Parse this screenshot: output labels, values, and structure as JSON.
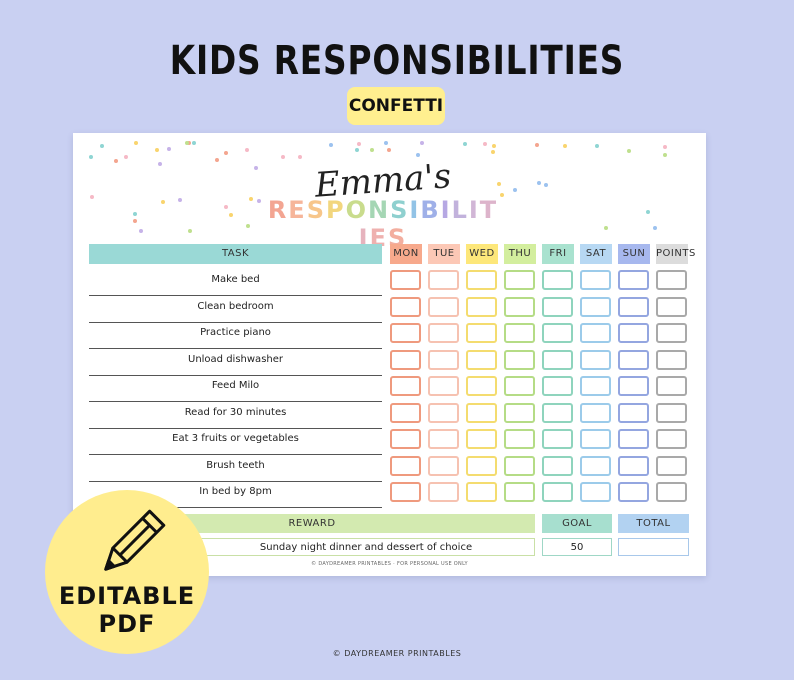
{
  "product": {
    "title": "KIDS RESPONSIBILITIES",
    "variant": "CONFETTI"
  },
  "chart": {
    "child_name": "Emma's",
    "heading": "RESPONSIBILITIES",
    "heading_colors": [
      "#f3a592",
      "#f6b59a",
      "#f7c68a",
      "#f2d67e",
      "#c9dc8d",
      "#a5d6b4",
      "#8fd0cf",
      "#92c3e6",
      "#9fb0e8",
      "#b6a8e3",
      "#c2b2dc",
      "#d1b6d6",
      "#ddb4cb",
      "#e6b3bd",
      "#efb1af",
      "#f3ae9f"
    ],
    "task_header": "TASK",
    "tasks": [
      "Make bed",
      "Clean bedroom",
      "Practice piano",
      "Unload dishwasher",
      "Feed Milo",
      "Read for 30 minutes",
      "Eat 3 fruits or vegetables",
      "Brush teeth",
      "In bed by 8pm"
    ],
    "days": [
      {
        "label": "MON",
        "header_color": "#f7a98c",
        "cell_color": "#ef9a7e"
      },
      {
        "label": "TUE",
        "header_color": "#fcc8b6",
        "cell_color": "#f6c2b1"
      },
      {
        "label": "WED",
        "header_color": "#fde77a",
        "cell_color": "#f4dc6f"
      },
      {
        "label": "THU",
        "header_color": "#d3ee9e",
        "cell_color": "#b5dc86"
      },
      {
        "label": "FRI",
        "header_color": "#a9e2cf",
        "cell_color": "#8fd4bd"
      },
      {
        "label": "SAT",
        "header_color": "#b7d8f3",
        "cell_color": "#9ccbea"
      },
      {
        "label": "SUN",
        "header_color": "#a7b8ee",
        "cell_color": "#94a6e0"
      },
      {
        "label": "POINTS",
        "header_color": "#dcdcdc",
        "cell_color": "#a9a9a9"
      }
    ],
    "task_header_color": "#9ad9d6",
    "reward_label": "REWARD",
    "reward_color": "#d3eab0",
    "reward_value": "Sunday night dinner and dessert of choice",
    "goal_label": "GOAL",
    "goal_color": "#a7dfcf",
    "goal_value": "50",
    "total_label": "TOTAL",
    "total_color": "#b2d2f1",
    "total_value": "",
    "copyright": "© DAYDREAMER PRINTABLES · FOR PERSONAL USE ONLY"
  },
  "badge": {
    "line1": "EDITABLE",
    "line2": "PDF",
    "icon": "pencil-icon"
  },
  "credit": "© DAYDREAMER PRINTABLES",
  "confetti_colors": [
    "#f4a58f",
    "#f9d46e",
    "#bfe08e",
    "#8fd5d3",
    "#9cc2ef",
    "#c6b3e8",
    "#f6b9c6"
  ]
}
